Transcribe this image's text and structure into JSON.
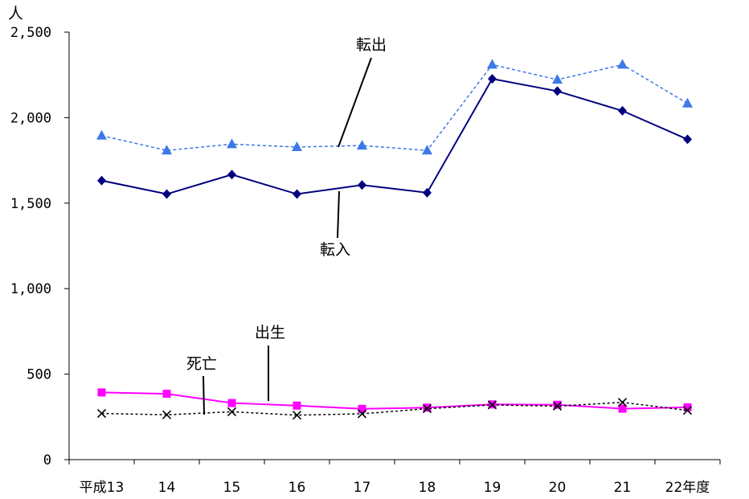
{
  "chart_data": {
    "type": "line",
    "y_unit": "人",
    "categories": [
      "平成13",
      "14",
      "15",
      "16",
      "17",
      "18",
      "19",
      "20",
      "21",
      "22年度"
    ],
    "ylim": [
      0,
      2500
    ],
    "yticks": [
      0,
      500,
      1000,
      1500,
      2000,
      2500
    ],
    "ytick_labels": [
      "0",
      "500",
      "1,000",
      "1,500",
      "2,000",
      "2,500"
    ],
    "grid": false,
    "series": [
      {
        "name": "転出",
        "color": "#3c78e8",
        "marker": "triangle",
        "dash": "dotted",
        "values": [
          1895,
          1808,
          1845,
          1828,
          1837,
          1808,
          2310,
          2222,
          2310,
          2083
        ]
      },
      {
        "name": "転入",
        "color": "#00007f",
        "marker": "diamond",
        "dash": "solid",
        "values": [
          1632,
          1553,
          1667,
          1553,
          1606,
          1561,
          2227,
          2155,
          2040,
          1873
        ]
      },
      {
        "name": "出生",
        "color": "#ff00ff",
        "marker": "square",
        "dash": "solid",
        "values": [
          393,
          385,
          331,
          316,
          297,
          304,
          323,
          321,
          298,
          306
        ]
      },
      {
        "name": "死亡",
        "color": "#000000",
        "marker": "x",
        "dash": "dotted",
        "values": [
          270,
          262,
          280,
          260,
          268,
          298,
          320,
          313,
          335,
          288
        ]
      }
    ],
    "annotations": [
      {
        "text": "転出",
        "series": "転出"
      },
      {
        "text": "転入",
        "series": "転入"
      },
      {
        "text": "出生",
        "series": "出生"
      },
      {
        "text": "死亡",
        "series": "死亡"
      }
    ]
  }
}
